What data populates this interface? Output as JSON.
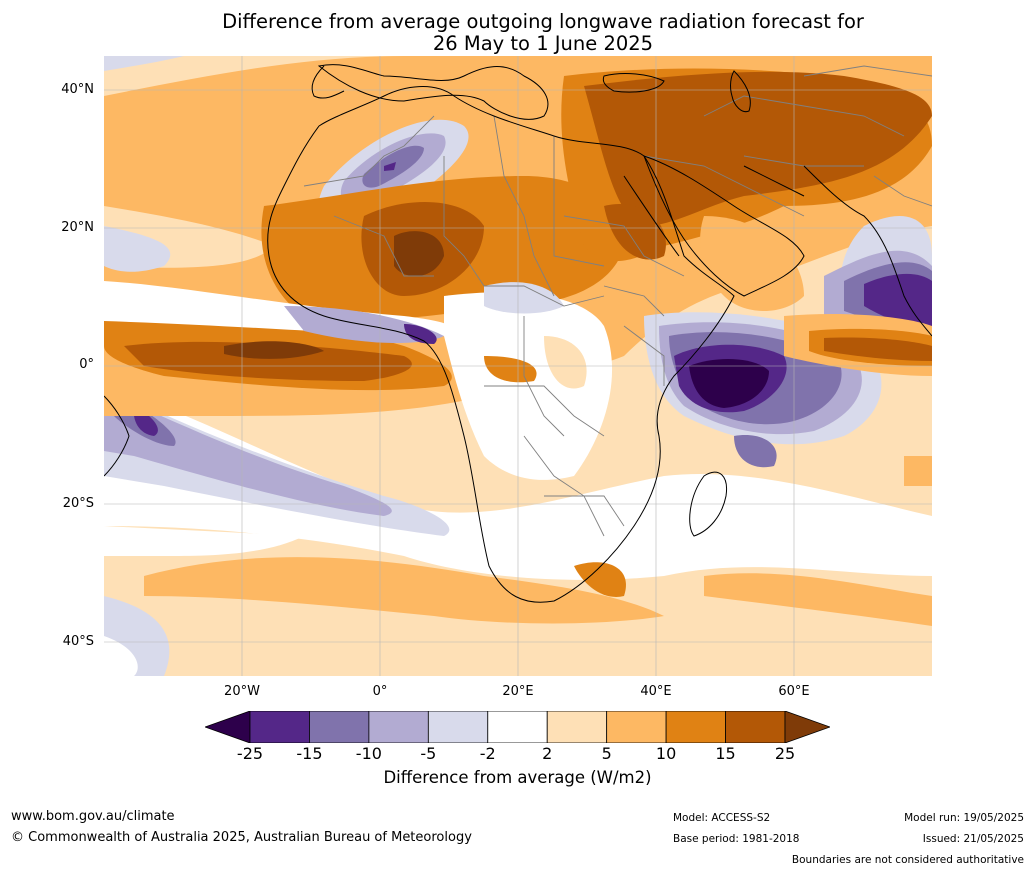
{
  "title_line1": "Difference from average outgoing longwave radiation forecast for",
  "title_line2": "26 May to 1 June 2025",
  "map": {
    "lat_labels": [
      "40°N",
      "20°N",
      "0°",
      "20°S",
      "40°S"
    ],
    "lon_labels": [
      "20°W",
      "0°",
      "20°E",
      "40°E",
      "60°E"
    ]
  },
  "colorbar": {
    "label": "Difference from average (W/m2)",
    "ticks": [
      "-25",
      "-15",
      "-10",
      "-5",
      "-2",
      "2",
      "5",
      "10",
      "15",
      "25"
    ],
    "colors": [
      "#2d004b",
      "#542788",
      "#8073ac",
      "#b2abd2",
      "#d8daeb",
      "#ffffff",
      "#fee0b6",
      "#fdb863",
      "#e08214",
      "#b35806",
      "#7f3b08"
    ]
  },
  "footer": {
    "website": "www.bom.gov.au/climate",
    "copyright": "© Commonwealth of Australia 2025, Australian Bureau of Meteorology",
    "model": "Model: ACCESS-S2",
    "base_period": "Base period: 1981-2018",
    "model_run": "Model run: 19/05/2025",
    "issued": "Issued: 21/05/2025",
    "disclaimer": "Boundaries are not considered authoritative"
  }
}
